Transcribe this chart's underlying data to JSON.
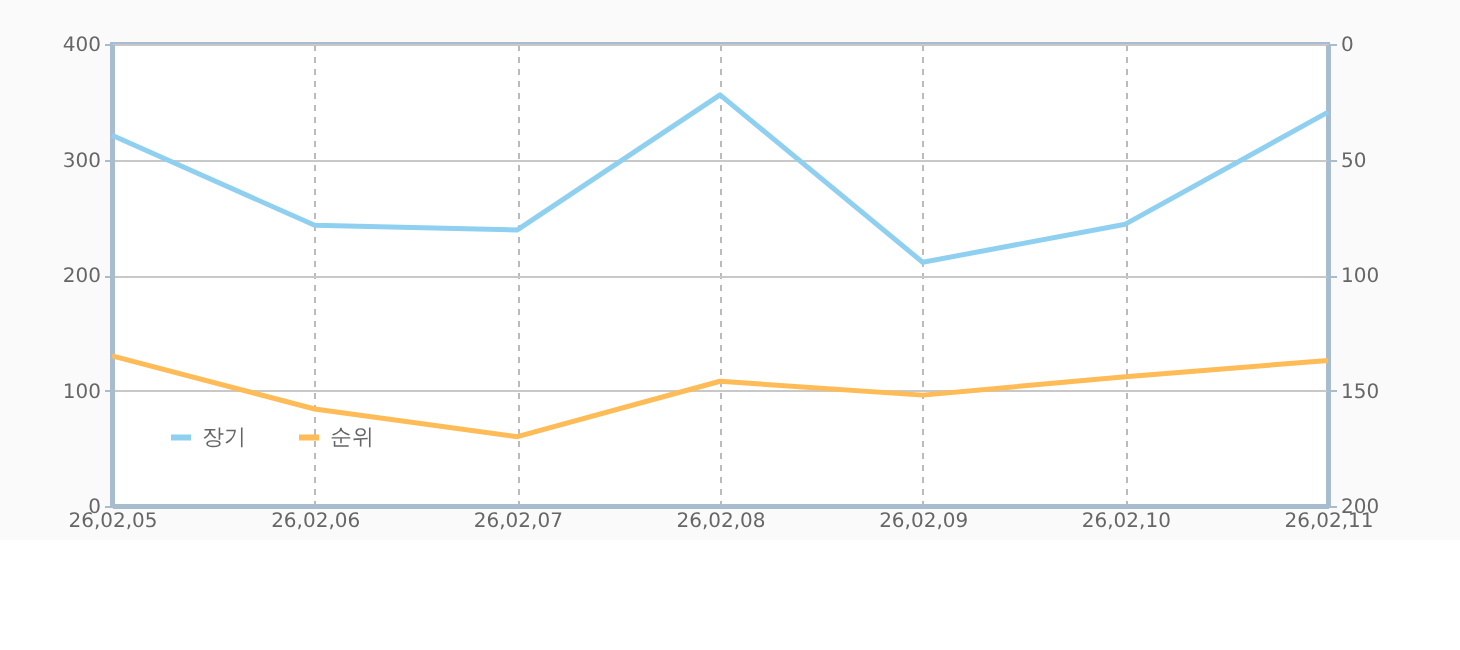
{
  "chart_data": {
    "type": "line",
    "categories": [
      "26,02,05",
      "26,02,06",
      "26,02,07",
      "26,02,08",
      "26,02,09",
      "26,02,10",
      "26,02,11"
    ],
    "series": [
      {
        "name": "장기",
        "color": "#8fd0f0",
        "values": [
          321,
          243,
          239,
          356,
          211,
          244,
          341
        ]
      },
      {
        "name": "순위",
        "color": "#ffbb55",
        "axis": "y2",
        "values": [
          135,
          158,
          170,
          146,
          152,
          144,
          137
        ]
      }
    ],
    "ylim": [
      0,
      400
    ],
    "yticks": [
      0,
      100,
      200,
      300,
      400
    ],
    "y2lim": [
      200,
      0
    ],
    "y2ticks": [
      0,
      50,
      100,
      150,
      200
    ],
    "grid": true,
    "legend": "bottom left",
    "marker": "none",
    "line_style": "solid"
  }
}
